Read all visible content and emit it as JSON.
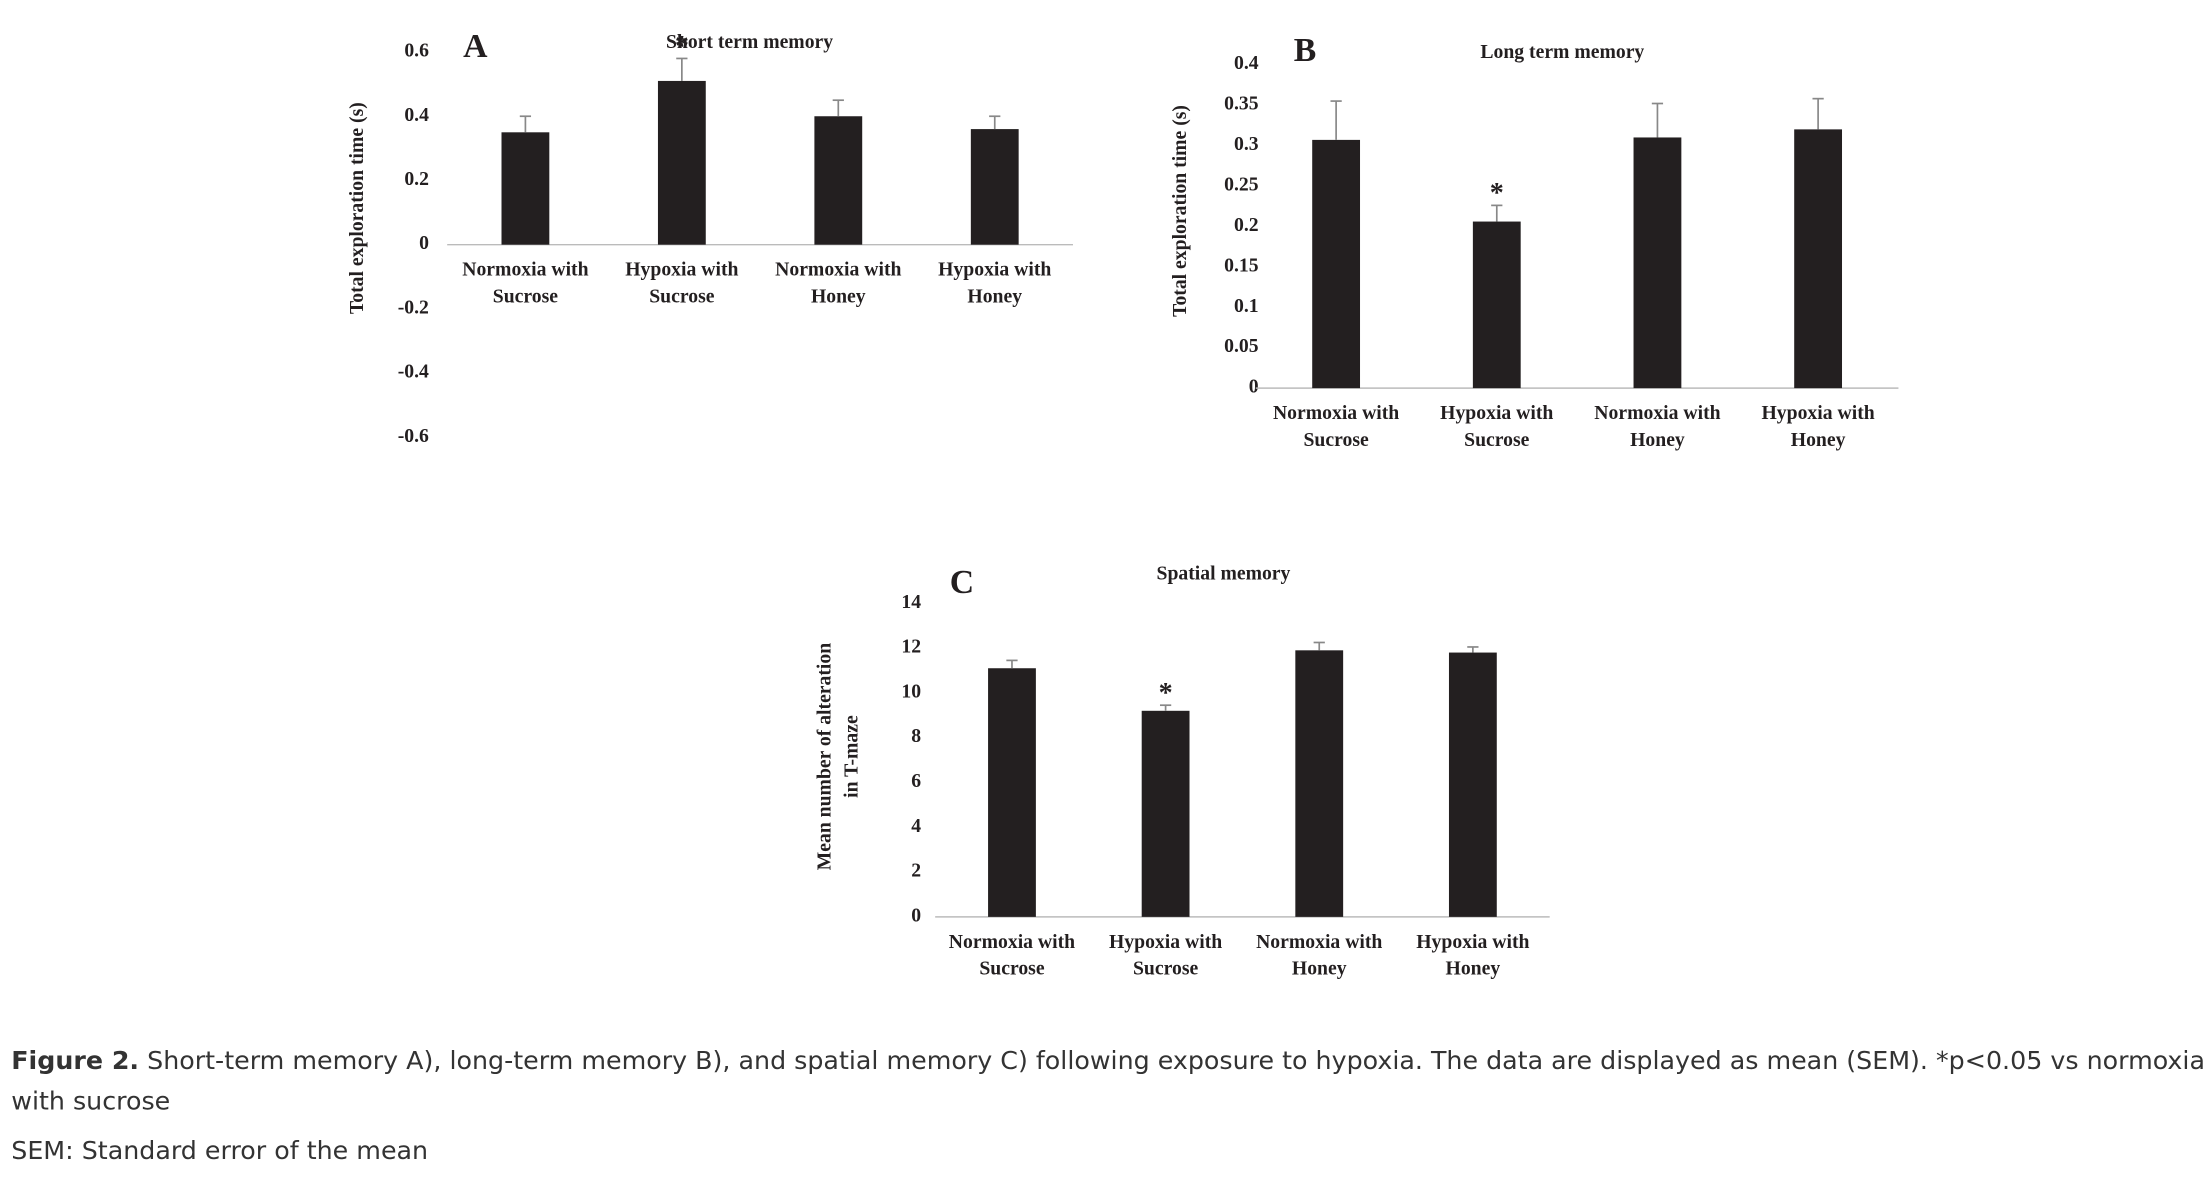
{
  "chart_data": [
    {
      "type": "bar",
      "panel": "A",
      "title": "Short term memory",
      "ylabel": [
        "Total exploration time (s)"
      ],
      "categories": [
        "Normoxia with Sucrose",
        "Hypoxia with Sucrose",
        "Normoxia with Honey",
        "Hypoxia with Honey"
      ],
      "values": [
        0.35,
        0.51,
        0.4,
        0.36
      ],
      "errors": [
        0.05,
        0.07,
        0.05,
        0.04
      ],
      "significance": [
        null,
        "*",
        null,
        null
      ],
      "color": "#231f20",
      "ylim": [
        -0.6,
        0.6
      ],
      "yticks": [
        -0.6,
        -0.4,
        -0.2,
        0,
        0.2,
        0.4,
        0.6
      ],
      "grid": false
    },
    {
      "type": "bar",
      "panel": "B",
      "title": "Long term memory",
      "ylabel": [
        "Total exploration time (s)"
      ],
      "categories": [
        "Normoxia with Sucrose",
        "Hypoxia with Sucrose",
        "Normoxia with Honey",
        "Hypoxia with Honey"
      ],
      "values": [
        0.307,
        0.206,
        0.31,
        0.32
      ],
      "errors": [
        0.048,
        0.02,
        0.042,
        0.038
      ],
      "significance": [
        null,
        "*",
        null,
        null
      ],
      "color": "#231f20",
      "ylim": [
        0,
        0.4
      ],
      "yticks": [
        0,
        0.05,
        0.1,
        0.15,
        0.2,
        0.25,
        0.3,
        0.35,
        0.4
      ],
      "grid": false
    },
    {
      "type": "bar",
      "panel": "C",
      "title": "Spatial memory",
      "ylabel": [
        "Mean number of alteration",
        "in T-maze"
      ],
      "categories": [
        "Normoxia with Sucrose",
        "Hypoxia with Sucrose",
        "Normoxia with Honey",
        "Hypoxia with Honey"
      ],
      "values": [
        11.1,
        9.2,
        11.9,
        11.8
      ],
      "errors": [
        0.35,
        0.25,
        0.35,
        0.25
      ],
      "significance": [
        null,
        "*",
        null,
        null
      ],
      "color": "#231f20",
      "ylim": [
        0,
        14
      ],
      "yticks": [
        0,
        2,
        4,
        6,
        8,
        10,
        12,
        14
      ],
      "grid": false
    }
  ],
  "caption": {
    "label": "Figure 2.",
    "text": "Short-term memory A), long-term memory B), and spatial memory C) following exposure to hypoxia. The data are displayed as mean (SEM). *p<0.05 vs normoxia with sucrose",
    "note": "SEM: Standard error of the mean"
  }
}
